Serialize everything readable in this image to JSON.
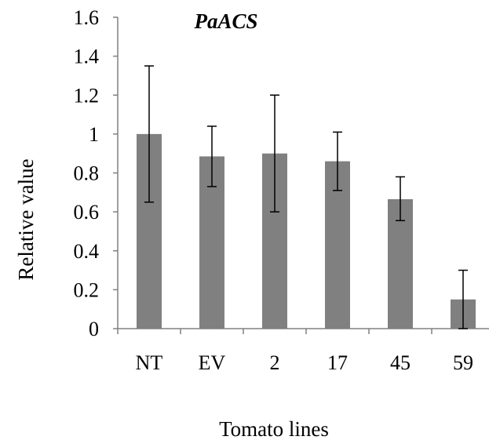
{
  "chart_data": {
    "type": "bar",
    "title": "PaACS",
    "xlabel": "Tomato lines",
    "ylabel": "Relative value",
    "categories": [
      "NT",
      "EV",
      "2",
      "17",
      "45",
      "59"
    ],
    "values": [
      1.0,
      0.885,
      0.9,
      0.86,
      0.665,
      0.15
    ],
    "error_bars": [
      {
        "low": 0.65,
        "high": 1.35
      },
      {
        "low": 0.73,
        "high": 1.04
      },
      {
        "low": 0.6,
        "high": 1.2
      },
      {
        "low": 0.71,
        "high": 1.01
      },
      {
        "low": 0.555,
        "high": 0.78
      },
      {
        "low": 0.0,
        "high": 0.3
      }
    ],
    "ylim": [
      0,
      1.6
    ],
    "yticks": [
      "0",
      "0.2",
      "0.4",
      "0.6",
      "0.8",
      "1",
      "1.2",
      "1.4",
      "1.6"
    ],
    "grid": false,
    "colors": {
      "bar": "#808080",
      "axis": "#808080",
      "error": "#000000"
    }
  }
}
